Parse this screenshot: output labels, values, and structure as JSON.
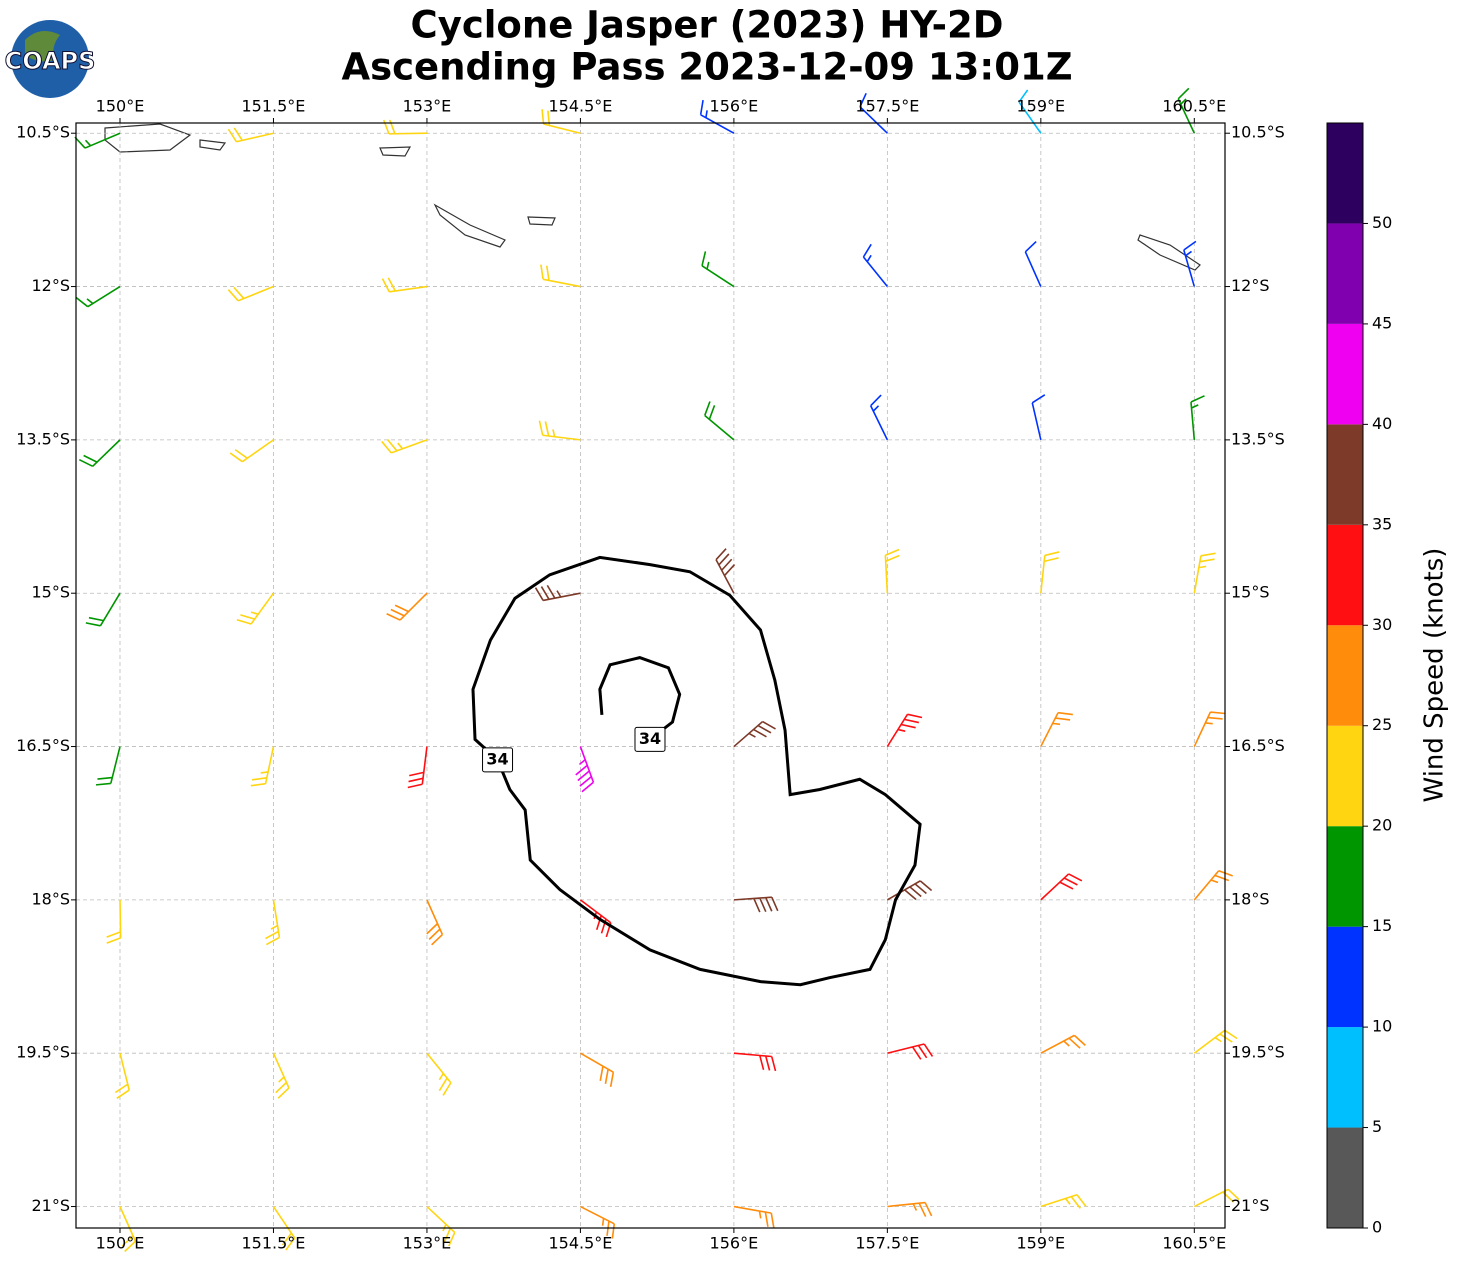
{
  "chart_data": {
    "type": "barbs",
    "title": "Cyclone Jasper (2023) HY-2D",
    "subtitle": "Ascending Pass 2023-12-09 13:01Z",
    "logo_text": "COAPS",
    "xlim": [
      149.57,
      160.8
    ],
    "ylim": [
      -21.21,
      -10.4
    ],
    "xticks": [
      {
        "value": 150,
        "label": "150°E"
      },
      {
        "value": 151.5,
        "label": "151.5°E"
      },
      {
        "value": 153,
        "label": "153°E"
      },
      {
        "value": 154.5,
        "label": "154.5°E"
      },
      {
        "value": 156,
        "label": "156°E"
      },
      {
        "value": 157.5,
        "label": "157.5°E"
      },
      {
        "value": 159,
        "label": "159°E"
      },
      {
        "value": 160.5,
        "label": "160.5°E"
      }
    ],
    "yticks": [
      {
        "value": -10.5,
        "label": "10.5°S"
      },
      {
        "value": -12,
        "label": "12°S"
      },
      {
        "value": -13.5,
        "label": "13.5°S"
      },
      {
        "value": -15,
        "label": "15°S"
      },
      {
        "value": -16.5,
        "label": "16.5°S"
      },
      {
        "value": -18,
        "label": "18°S"
      },
      {
        "value": -19.5,
        "label": "19.5°S"
      },
      {
        "value": -21,
        "label": "21°S"
      }
    ],
    "grid": true,
    "barbs": {
      "lon": [
        150,
        151.5,
        153,
        154.5,
        156,
        157.5,
        159,
        160.5
      ],
      "lat": [
        -10.5,
        -12,
        -13.5,
        -15,
        -16.5,
        -18,
        -19.5,
        -21
      ],
      "speed": [
        [
          16,
          22,
          22,
          20,
          13,
          12,
          8,
          17
        ],
        [
          17,
          22,
          22,
          22,
          17,
          13,
          12,
          13
        ],
        [
          18,
          22,
          23,
          23,
          18,
          13,
          12,
          15
        ],
        [
          19,
          23,
          28,
          37,
          38,
          22,
          22,
          24
        ],
        [
          18,
          23,
          32,
          43,
          37,
          33,
          27,
          26
        ],
        [
          22,
          24,
          28,
          33,
          38,
          38,
          32,
          27
        ],
        [
          22,
          23,
          24,
          28,
          31,
          30,
          26,
          24
        ],
        [
          22,
          22,
          23,
          26,
          27,
          26,
          24,
          22
        ]
      ],
      "direction": [
        [
          247,
          257,
          269,
          284,
          299,
          314,
          325,
          335
        ],
        [
          238,
          248,
          262,
          281,
          303,
          321,
          336,
          344
        ],
        [
          226,
          235,
          250,
          277,
          310,
          334,
          347,
          355
        ],
        [
          211,
          216,
          225,
          259,
          332,
          357,
          6,
          10
        ],
        [
          194,
          192,
          187,
          160,
          49,
          32,
          27,
          25
        ],
        [
          179,
          171,
          156,
          127,
          86,
          60,
          47,
          40
        ],
        [
          166,
          156,
          141,
          120,
          95,
          76,
          62,
          53
        ],
        [
          156,
          146,
          133,
          117,
          100,
          84,
          72,
          63
        ]
      ]
    },
    "contours": [
      {
        "level": 34,
        "lon": [
          153.69,
          153.47,
          153.45,
          153.62,
          153.86,
          154.2,
          154.69,
          155.18,
          155.57,
          155.96,
          156.26,
          156.4,
          156.5,
          156.55,
          156.84,
          157.23,
          157.48,
          157.82,
          157.77,
          157.58,
          157.48,
          157.33,
          156.94,
          156.65,
          156.26,
          155.67,
          155.18,
          154.69,
          154.3,
          154.01,
          153.96,
          153.81,
          153.69
        ],
        "lat": [
          -16.63,
          -16.43,
          -15.94,
          -15.46,
          -15.05,
          -14.82,
          -14.65,
          -14.72,
          -14.79,
          -15.02,
          -15.36,
          -15.85,
          -16.34,
          -16.97,
          -16.92,
          -16.82,
          -16.97,
          -17.26,
          -17.66,
          -18.0,
          -18.39,
          -18.68,
          -18.76,
          -18.83,
          -18.8,
          -18.68,
          -18.49,
          -18.19,
          -17.9,
          -17.61,
          -17.12,
          -16.92,
          -16.63
        ]
      },
      {
        "level": 34,
        "lon": [
          155.18,
          155.4,
          155.47,
          155.36,
          155.08,
          154.79,
          154.69,
          154.71
        ],
        "lat": [
          -16.43,
          -16.26,
          -15.99,
          -15.73,
          -15.63,
          -15.7,
          -15.94,
          -16.19
        ]
      }
    ],
    "colorbar": {
      "label": "Wind Speed (knots)",
      "bounds": [
        0,
        5,
        10,
        15,
        20,
        25,
        30,
        35,
        40,
        45,
        50,
        55
      ],
      "colors": [
        "#585858",
        "#00bfff",
        "#0033ff",
        "#009600",
        "#ffd511",
        "#ff8c0a",
        "#ff0f12",
        "#7d3a28",
        "#f000f0",
        "#8000b0",
        "#2d0060"
      ],
      "ticks": [
        0,
        5,
        10,
        15,
        20,
        25,
        30,
        35,
        40,
        45,
        50
      ]
    }
  }
}
